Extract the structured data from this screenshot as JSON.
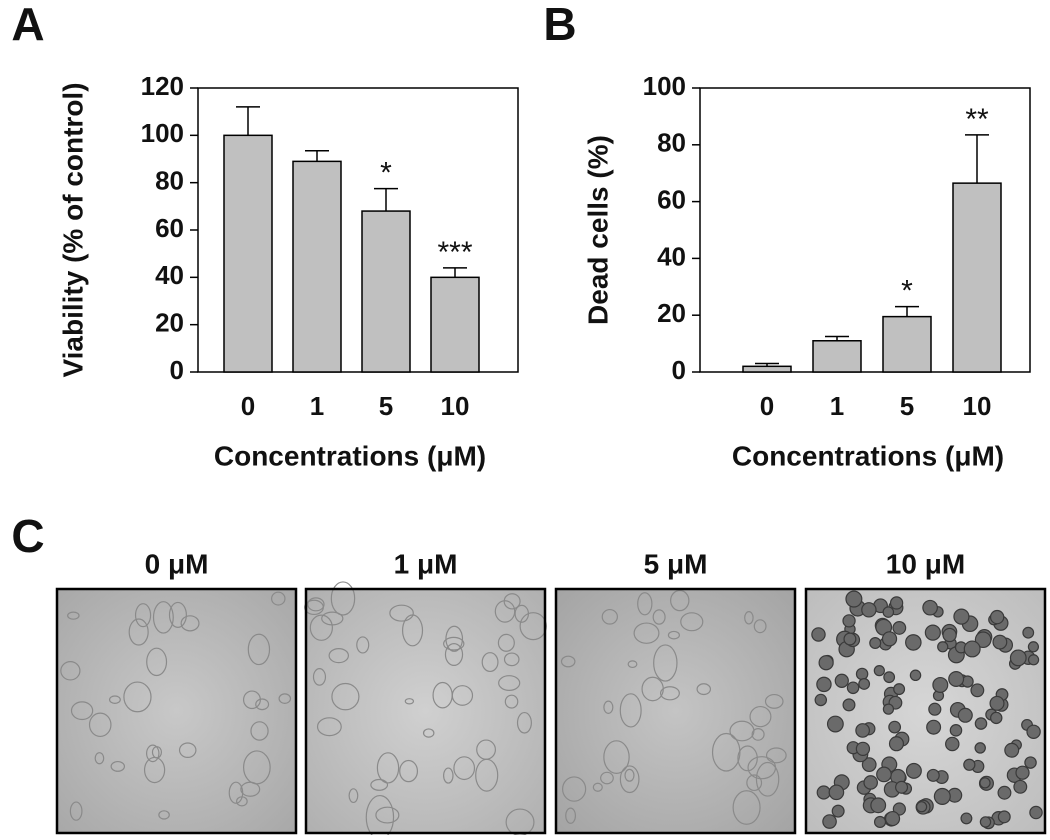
{
  "chart_data": [
    {
      "type": "bar",
      "panel_label": "A",
      "y_label": "Viability (% of control)",
      "x_label": "Concentrations (μM)",
      "categories": [
        "0",
        "1",
        "5",
        "10"
      ],
      "values": [
        100,
        89,
        68,
        40
      ],
      "errors": [
        12,
        4.5,
        9.5,
        4
      ],
      "annotations": [
        null,
        null,
        "*",
        "***"
      ],
      "color": "#c0c0c0",
      "ylim": [
        0,
        120
      ],
      "yticks": [
        0,
        20,
        40,
        60,
        80,
        100,
        120
      ]
    },
    {
      "type": "bar",
      "panel_label": "B",
      "y_label": "Dead cells (%)",
      "x_label": "Concentrations (μM)",
      "categories": [
        "0",
        "1",
        "5",
        "10"
      ],
      "values": [
        2,
        11,
        19.5,
        66.5
      ],
      "errors": [
        1,
        1.5,
        3.5,
        17
      ],
      "annotations": [
        null,
        null,
        "*",
        "**"
      ],
      "color": "#c0c0c0",
      "ylim": [
        0,
        100
      ],
      "yticks": [
        0,
        20,
        40,
        60,
        80,
        100
      ]
    }
  ],
  "panel_c": {
    "label": "C",
    "images": [
      {
        "label": "0 μM"
      },
      {
        "label": "1 μM"
      },
      {
        "label": "5 μM"
      },
      {
        "label": "10 μM"
      }
    ]
  }
}
